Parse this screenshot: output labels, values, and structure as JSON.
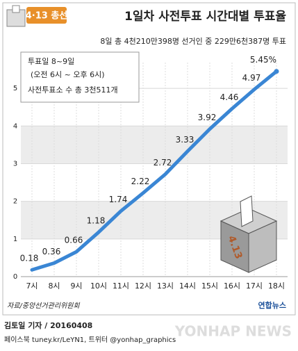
{
  "chart_data": {
    "type": "line",
    "badge": "4·13 총선",
    "title": "1일차 사전투표 시간대별 투표율",
    "subtitle": "8일 총 4천210만398명 선거인 중 229만6천387명 투표",
    "notes": [
      "투표일 8~9일",
      "(오전 6시 ~ 오후 6시)",
      "사전투표소 수 총 3천511개"
    ],
    "categories": [
      "7시",
      "8시",
      "9시",
      "10시",
      "11시",
      "12시",
      "13시",
      "14시",
      "15시",
      "16시",
      "17시",
      "18시"
    ],
    "values": [
      0.18,
      0.36,
      0.66,
      1.18,
      1.74,
      2.22,
      2.72,
      3.33,
      3.92,
      4.46,
      4.97,
      5.45
    ],
    "value_labels": [
      "0.18",
      "0.36",
      "0.66",
      "1.18",
      "1.74",
      "2.22",
      "2.72",
      "3.33",
      "3.92",
      "4.46",
      "4.97",
      "5.45%"
    ],
    "color": "#3a86d4",
    "ylim": [
      0,
      5.5
    ],
    "yticks": [
      0,
      1,
      2,
      3,
      4,
      5
    ],
    "grid": true,
    "box_label": "4.13",
    "source": "자료/중앙선거관리위원회",
    "logo": "연합뉴스",
    "credit": "김토일 기자 / 20160408",
    "social": "페이스북 tuney.kr/LeYN1, 트위터 @yonhap_graphics",
    "watermark": "YONHAP NEWS"
  }
}
